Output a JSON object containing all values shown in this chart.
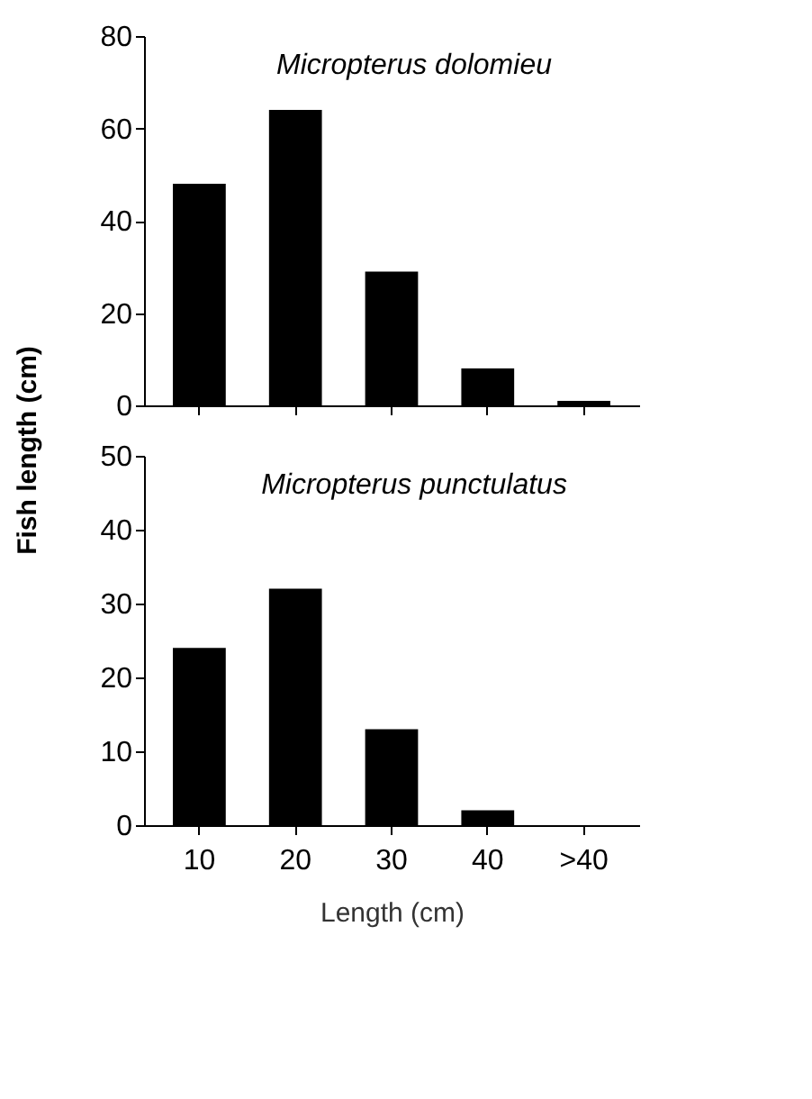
{
  "chart_data": [
    {
      "type": "bar",
      "title": "Micropterus dolomieu",
      "ylabel": "Fish length (cm)",
      "values": [
        48,
        64,
        29,
        8,
        1
      ],
      "color": "#000000",
      "ylim": [
        0,
        80
      ],
      "yticks": [
        0,
        20,
        40,
        60,
        80
      ],
      "tick_labels": "y",
      "grid": false
    },
    {
      "type": "bar",
      "title": "Micropterus punctulatus",
      "xlabel": "Length (cm)",
      "categories": [
        "10",
        "20",
        "30",
        "40",
        ">40"
      ],
      "values": [
        24,
        32,
        13,
        2,
        0
      ],
      "color": "#000000",
      "ylim": [
        0,
        50
      ],
      "yticks": [
        0,
        10,
        20,
        30,
        40,
        50
      ],
      "grid": false
    }
  ]
}
